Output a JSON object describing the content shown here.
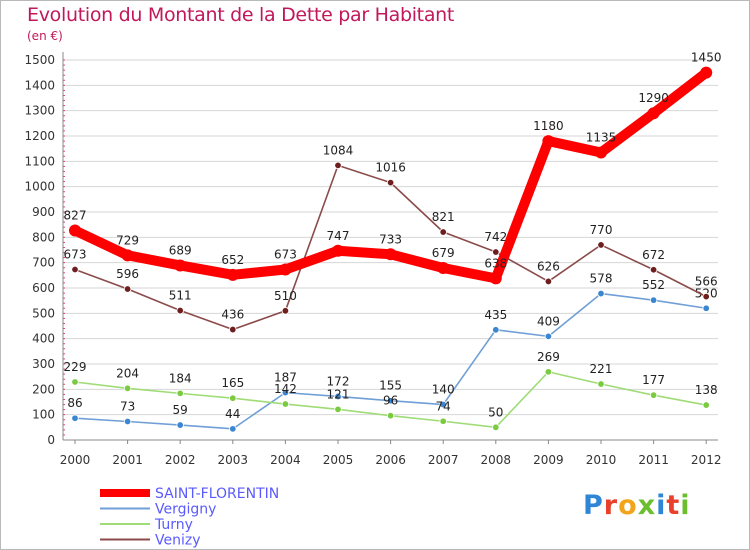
{
  "title": "Evolution du Montant de la Dette par Habitant",
  "subtitle": "(en €)",
  "logo": {
    "text": "Proxiti",
    "colors": [
      "#2f86d6",
      "#e8402b",
      "#f2a51b",
      "#6bbf2e",
      "#2f86d6",
      "#e8402b",
      "#6bbf2e"
    ]
  },
  "chart_data": {
    "type": "line",
    "title": "Evolution du Montant de la Dette par Habitant",
    "subtitle": "(en €)",
    "x": [
      "2000",
      "2001",
      "2002",
      "2003",
      "2004",
      "2005",
      "2006",
      "2007",
      "2008",
      "2009",
      "2010",
      "2011",
      "2012"
    ],
    "ylim": [
      0,
      1500
    ],
    "yticks": [
      0,
      100,
      200,
      300,
      400,
      500,
      600,
      700,
      800,
      900,
      1000,
      1100,
      1200,
      1300,
      1400,
      1500
    ],
    "grid": "horizontal",
    "legend_position": "bottom-left",
    "series": [
      {
        "name": "SAINT-FLORENTIN",
        "color": "#ff0000",
        "marker": "#ff0000",
        "highlight": true,
        "values": [
          827,
          729,
          689,
          652,
          673,
          747,
          733,
          679,
          638,
          1180,
          1135,
          1290,
          1450
        ]
      },
      {
        "name": "Vergigny",
        "color": "#6f9fd6",
        "marker": "#3b86d1",
        "highlight": false,
        "values": [
          86,
          73,
          59,
          44,
          187,
          172,
          155,
          140,
          435,
          409,
          578,
          552,
          520
        ]
      },
      {
        "name": "Turny",
        "color": "#9fdc76",
        "marker": "#7acb3f",
        "highlight": false,
        "values": [
          229,
          204,
          184,
          165,
          142,
          121,
          96,
          74,
          50,
          269,
          221,
          177,
          138
        ]
      },
      {
        "name": "Venizy",
        "color": "#8b4b4b",
        "marker": "#6e1e1e",
        "highlight": false,
        "values": [
          673,
          596,
          511,
          436,
          510,
          1084,
          1016,
          821,
          742,
          626,
          770,
          672,
          566
        ]
      }
    ]
  }
}
